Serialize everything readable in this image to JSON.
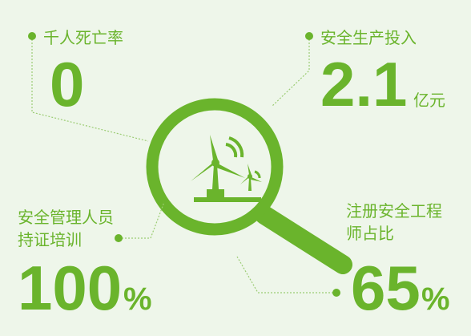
{
  "items": [
    {
      "label": [
        "千人死亡率"
      ],
      "value": "0"
    },
    {
      "label": [
        "安全生产投入"
      ],
      "value": "2.1",
      "unit": "亿元"
    },
    {
      "label": [
        "安全管理人员",
        "持证培训"
      ],
      "value": "100",
      "unit": "%"
    },
    {
      "label": [
        "注册安全工程",
        "师占比"
      ],
      "value": "65",
      "unit": "%"
    }
  ]
}
